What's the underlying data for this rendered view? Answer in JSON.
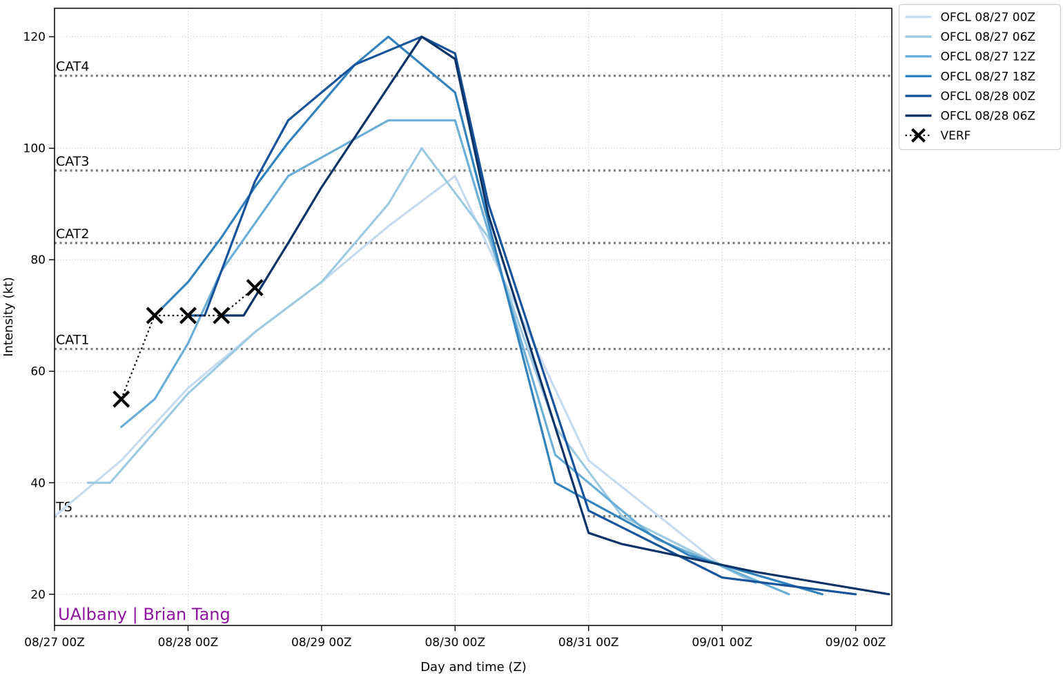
{
  "figure": {
    "background": "#ffffff"
  },
  "axes": {
    "xlabel": "Day and time (Z)",
    "ylabel": "Intensity (kt)",
    "x_ticks": [
      {
        "hour": 0,
        "label": "08/27 00Z"
      },
      {
        "hour": 24,
        "label": "08/28 00Z"
      },
      {
        "hour": 48,
        "label": "08/29 00Z"
      },
      {
        "hour": 72,
        "label": "08/30 00Z"
      },
      {
        "hour": 96,
        "label": "08/31 00Z"
      },
      {
        "hour": 120,
        "label": "09/01 00Z"
      },
      {
        "hour": 144,
        "label": "09/02 00Z"
      }
    ],
    "y_ticks": [
      20,
      40,
      60,
      80,
      100,
      120
    ],
    "xlim_hours": [
      0,
      150.5
    ],
    "ylim": [
      14.4,
      125.1
    ],
    "grid_color": "#bdbdbd",
    "spine_color": "#000000"
  },
  "watermark": {
    "text": "UAlbany | Brian Tang",
    "color": "#8e14a0"
  },
  "legend": {
    "entries": [
      {
        "label": "OFCL 08/27 00Z",
        "color": "#c6dbef",
        "style": "solid"
      },
      {
        "label": "OFCL 08/27 06Z",
        "color": "#9ecae1",
        "style": "solid"
      },
      {
        "label": "OFCL 08/27 12Z",
        "color": "#6baed6",
        "style": "solid"
      },
      {
        "label": "OFCL 08/27 18Z",
        "color": "#3182bd",
        "style": "solid"
      },
      {
        "label": "OFCL 08/28 00Z",
        "color": "#17539d",
        "style": "solid"
      },
      {
        "label": "OFCL 08/28 06Z",
        "color": "#0b3367",
        "style": "solid"
      },
      {
        "label": "VERF",
        "color": "#000000",
        "style": "verf"
      }
    ]
  },
  "chart_data": {
    "type": "line",
    "title": "",
    "xlabel": "Day and time (Z)",
    "ylabel": "Intensity (kt)",
    "x_unit": "hours since 08/27 00Z",
    "ylim": [
      14.4,
      125.1
    ],
    "grid": true,
    "legend_position": "outside-top-right",
    "thresholds": [
      {
        "label": "TS",
        "value": 34,
        "color": "#7a7a7a"
      },
      {
        "label": "CAT1",
        "value": 64,
        "color": "#7a7a7a"
      },
      {
        "label": "CAT2",
        "value": 83,
        "color": "#7a7a7a"
      },
      {
        "label": "CAT3",
        "value": 96,
        "color": "#7a7a7a"
      },
      {
        "label": "CAT4",
        "value": 113,
        "color": "#7a7a7a"
      }
    ],
    "series": [
      {
        "name": "OFCL 08/27 00Z",
        "color": "#c6dbef",
        "style": "solid",
        "points": [
          [
            0,
            34
          ],
          [
            12,
            44
          ],
          [
            24,
            57
          ],
          [
            36,
            67
          ],
          [
            48,
            76
          ],
          [
            60,
            86
          ],
          [
            72,
            95
          ],
          [
            96,
            44
          ],
          [
            120,
            25
          ]
        ]
      },
      {
        "name": "OFCL 08/27 06Z",
        "color": "#9ecae1",
        "style": "solid",
        "points": [
          [
            6,
            40
          ],
          [
            10,
            40
          ],
          [
            24,
            56
          ],
          [
            36,
            67
          ],
          [
            48,
            76
          ],
          [
            60,
            90
          ],
          [
            66,
            100
          ],
          [
            78,
            84
          ],
          [
            90,
            50
          ],
          [
            102,
            34
          ],
          [
            126,
            22
          ]
        ]
      },
      {
        "name": "OFCL 08/27 12Z",
        "color": "#6baed6",
        "style": "solid",
        "points": [
          [
            12,
            50
          ],
          [
            18,
            55
          ],
          [
            24,
            65
          ],
          [
            30,
            78
          ],
          [
            42,
            95
          ],
          [
            60,
            105
          ],
          [
            72,
            105
          ],
          [
            90,
            45
          ],
          [
            108,
            30
          ],
          [
            132,
            20
          ]
        ]
      },
      {
        "name": "OFCL 08/27 18Z",
        "color": "#3182bd",
        "style": "solid",
        "points": [
          [
            18,
            70
          ],
          [
            24,
            76
          ],
          [
            30,
            84
          ],
          [
            36,
            93
          ],
          [
            42,
            101
          ],
          [
            48,
            108
          ],
          [
            54,
            115
          ],
          [
            60,
            120
          ],
          [
            72,
            110
          ],
          [
            90,
            40
          ],
          [
            114,
            27
          ],
          [
            138,
            20
          ]
        ]
      },
      {
        "name": "OFCL 08/28 00Z",
        "color": "#17539d",
        "style": "solid",
        "points": [
          [
            24,
            70
          ],
          [
            27,
            70
          ],
          [
            36,
            94
          ],
          [
            42,
            105
          ],
          [
            54,
            115
          ],
          [
            66,
            120
          ],
          [
            72,
            117
          ],
          [
            78,
            90
          ],
          [
            96,
            35
          ],
          [
            120,
            23
          ],
          [
            144,
            20
          ]
        ]
      },
      {
        "name": "OFCL 08/28 06Z",
        "color": "#0b3367",
        "style": "solid",
        "points": [
          [
            30,
            70
          ],
          [
            34,
            70
          ],
          [
            42,
            83
          ],
          [
            48,
            93
          ],
          [
            54,
            102
          ],
          [
            60,
            111
          ],
          [
            66,
            120
          ],
          [
            72,
            116
          ],
          [
            78,
            88
          ],
          [
            96,
            31
          ],
          [
            102,
            29
          ],
          [
            126,
            24
          ],
          [
            150,
            20
          ]
        ]
      }
    ],
    "verification": {
      "name": "VERF",
      "color": "#000000",
      "style": "dotted-x",
      "points": [
        [
          12,
          55
        ],
        [
          18,
          70
        ],
        [
          24,
          70
        ],
        [
          30,
          70
        ],
        [
          36,
          75
        ]
      ]
    }
  }
}
